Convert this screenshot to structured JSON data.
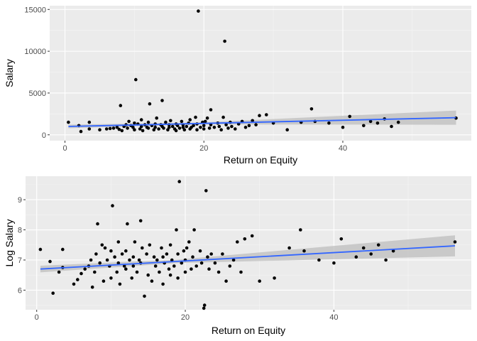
{
  "colors": {
    "panel_bg": "#ebebeb",
    "grid_major": "#ffffff",
    "grid_minor": "#f5f5f5",
    "point": "#000000",
    "smooth_line": "#3366ff",
    "ribbon": "#bdbdbd",
    "tick_text": "#4d4d4d"
  },
  "chart_data": [
    {
      "type": "scatter",
      "title": "",
      "xlabel": "Return on Equity",
      "ylabel": "Salary",
      "xlim": [
        -2.2,
        58.5
      ],
      "ylim": [
        -700,
        15450
      ],
      "x_ticks": [
        0,
        20,
        40
      ],
      "y_ticks": [
        0,
        5000,
        10000,
        15000
      ],
      "grid": true,
      "smooth": {
        "method": "lm",
        "se": true,
        "x": [
          0.5,
          56.3
        ],
        "y": [
          1000,
          2050
        ],
        "ci_halfwidth": [
          210,
          850
        ]
      },
      "points": [
        [
          0.5,
          1500
        ],
        [
          2,
          1100
        ],
        [
          2.3,
          400
        ],
        [
          3.5,
          700
        ],
        [
          3.5,
          1500
        ],
        [
          5,
          600
        ],
        [
          6,
          700
        ],
        [
          6.5,
          750
        ],
        [
          7,
          800
        ],
        [
          7.5,
          900
        ],
        [
          7.8,
          650
        ],
        [
          8,
          3500
        ],
        [
          8.2,
          500
        ],
        [
          8.5,
          1000
        ],
        [
          8.8,
          1200
        ],
        [
          9,
          800
        ],
        [
          9.2,
          1600
        ],
        [
          9.5,
          1100
        ],
        [
          9.8,
          900
        ],
        [
          10,
          1400
        ],
        [
          10,
          600
        ],
        [
          10.2,
          6600
        ],
        [
          10.5,
          1300
        ],
        [
          10.8,
          700
        ],
        [
          11,
          1000
        ],
        [
          11,
          1800
        ],
        [
          11.2,
          500
        ],
        [
          11.5,
          1200
        ],
        [
          11.8,
          900
        ],
        [
          12,
          1500
        ],
        [
          12,
          800
        ],
        [
          12.2,
          3700
        ],
        [
          12.5,
          1100
        ],
        [
          12.8,
          600
        ],
        [
          13,
          1300
        ],
        [
          13,
          900
        ],
        [
          13.2,
          2000
        ],
        [
          13.5,
          700
        ],
        [
          13.8,
          1200
        ],
        [
          14,
          4100
        ],
        [
          14,
          1000
        ],
        [
          14.2,
          800
        ],
        [
          14.5,
          1500
        ],
        [
          14.8,
          600
        ],
        [
          15,
          1200
        ],
        [
          15,
          900
        ],
        [
          15.2,
          1700
        ],
        [
          15.5,
          1000
        ],
        [
          15.8,
          700
        ],
        [
          16,
          1300
        ],
        [
          16,
          500
        ],
        [
          16.2,
          1100
        ],
        [
          16.5,
          800
        ],
        [
          16.8,
          1600
        ],
        [
          17,
          900
        ],
        [
          17,
          1200
        ],
        [
          17.2,
          600
        ],
        [
          17.5,
          1000
        ],
        [
          17.8,
          1400
        ],
        [
          18,
          700
        ],
        [
          18,
          1800
        ],
        [
          18.2,
          900
        ],
        [
          18.5,
          1100
        ],
        [
          18.8,
          2100
        ],
        [
          19,
          1300
        ],
        [
          19,
          600
        ],
        [
          19.2,
          14800
        ],
        [
          19.5,
          900
        ],
        [
          19.8,
          1500
        ],
        [
          20,
          1100
        ],
        [
          20,
          700
        ],
        [
          20.2,
          1600
        ],
        [
          20.5,
          2000
        ],
        [
          20.8,
          800
        ],
        [
          21,
          1200
        ],
        [
          21,
          3000
        ],
        [
          21.5,
          900
        ],
        [
          22,
          1400
        ],
        [
          22.2,
          1000
        ],
        [
          22.5,
          600
        ],
        [
          22.8,
          2100
        ],
        [
          23,
          11200
        ],
        [
          23.2,
          1200
        ],
        [
          23.5,
          800
        ],
        [
          23.8,
          1500
        ],
        [
          24,
          1000
        ],
        [
          24.5,
          700
        ],
        [
          25,
          1300
        ],
        [
          25.5,
          1600
        ],
        [
          26,
          900
        ],
        [
          26.5,
          1100
        ],
        [
          27,
          1700
        ],
        [
          27.5,
          1200
        ],
        [
          28,
          2300
        ],
        [
          29,
          2400
        ],
        [
          30,
          1400
        ],
        [
          32,
          600
        ],
        [
          34,
          1500
        ],
        [
          35.5,
          3100
        ],
        [
          36,
          1600
        ],
        [
          38,
          1400
        ],
        [
          40,
          900
        ],
        [
          41,
          2200
        ],
        [
          43,
          1100
        ],
        [
          44,
          1600
        ],
        [
          45,
          1400
        ],
        [
          46,
          1900
        ],
        [
          47,
          1000
        ],
        [
          48,
          1500
        ],
        [
          56.3,
          2000
        ]
      ]
    },
    {
      "type": "scatter",
      "title": "",
      "xlabel": "Return on Equity",
      "ylabel": "Log Salary",
      "xlim": [
        -1.5,
        58.5
      ],
      "ylim": [
        5.35,
        9.78
      ],
      "x_ticks": [
        0,
        20,
        40
      ],
      "y_ticks": [
        6,
        7,
        8,
        9
      ],
      "grid": true,
      "smooth": {
        "method": "lm",
        "se": true,
        "x": [
          0.5,
          56.3
        ],
        "y": [
          6.7,
          7.47
        ],
        "ci_halfwidth": [
          0.11,
          0.35
        ]
      },
      "points": [
        [
          0.5,
          7.35
        ],
        [
          1.8,
          6.95
        ],
        [
          2.2,
          5.9
        ],
        [
          3,
          6.6
        ],
        [
          3.5,
          6.75
        ],
        [
          3.5,
          7.35
        ],
        [
          5,
          6.2
        ],
        [
          5.5,
          6.35
        ],
        [
          6,
          6.55
        ],
        [
          6.5,
          6.7
        ],
        [
          7,
          6.8
        ],
        [
          7.3,
          7.0
        ],
        [
          7.5,
          6.1
        ],
        [
          7.8,
          6.6
        ],
        [
          8,
          7.2
        ],
        [
          8.2,
          8.2
        ],
        [
          8.5,
          6.9
        ],
        [
          8.8,
          7.5
        ],
        [
          9,
          6.3
        ],
        [
          9.2,
          7.4
        ],
        [
          9.5,
          7.0
        ],
        [
          9.8,
          6.8
        ],
        [
          10,
          7.3
        ],
        [
          10,
          6.4
        ],
        [
          10.2,
          8.8
        ],
        [
          10.5,
          7.1
        ],
        [
          10.8,
          6.6
        ],
        [
          11,
          7.6
        ],
        [
          11,
          6.9
        ],
        [
          11.2,
          6.2
        ],
        [
          11.5,
          7.2
        ],
        [
          11.8,
          6.8
        ],
        [
          12,
          7.3
        ],
        [
          12,
          6.7
        ],
        [
          12.2,
          8.2
        ],
        [
          12.5,
          7.0
        ],
        [
          12.8,
          6.4
        ],
        [
          13,
          7.1
        ],
        [
          13,
          6.8
        ],
        [
          13.2,
          7.6
        ],
        [
          13.5,
          6.6
        ],
        [
          13.8,
          7.0
        ],
        [
          14,
          8.3
        ],
        [
          14,
          6.9
        ],
        [
          14.2,
          7.4
        ],
        [
          14.5,
          5.8
        ],
        [
          14.8,
          7.2
        ],
        [
          15,
          6.5
        ],
        [
          15.2,
          7.5
        ],
        [
          15.5,
          6.3
        ],
        [
          15.8,
          7.1
        ],
        [
          16,
          6.8
        ],
        [
          16.2,
          7.0
        ],
        [
          16.5,
          6.6
        ],
        [
          16.8,
          7.4
        ],
        [
          17,
          6.2
        ],
        [
          17,
          7.1
        ],
        [
          17.2,
          6.9
        ],
        [
          17.5,
          7.2
        ],
        [
          17.8,
          6.7
        ],
        [
          18,
          7.5
        ],
        [
          18,
          6.5
        ],
        [
          18.2,
          7.0
        ],
        [
          18.5,
          6.8
        ],
        [
          18.8,
          8.0
        ],
        [
          19,
          7.2
        ],
        [
          19,
          6.4
        ],
        [
          19.2,
          9.6
        ],
        [
          19.5,
          6.9
        ],
        [
          19.8,
          7.3
        ],
        [
          20,
          7.0
        ],
        [
          20,
          6.6
        ],
        [
          20.2,
          7.4
        ],
        [
          20.5,
          7.6
        ],
        [
          20.8,
          6.7
        ],
        [
          21,
          7.1
        ],
        [
          21.2,
          8.0
        ],
        [
          21.5,
          6.8
        ],
        [
          22,
          7.3
        ],
        [
          22.2,
          6.9
        ],
        [
          22.5,
          5.4
        ],
        [
          22.6,
          5.5
        ],
        [
          22.8,
          9.3
        ],
        [
          23,
          7.1
        ],
        [
          23.2,
          6.7
        ],
        [
          23.5,
          7.2
        ],
        [
          24,
          6.9
        ],
        [
          24.5,
          6.6
        ],
        [
          25,
          7.2
        ],
        [
          25.5,
          6.3
        ],
        [
          26,
          6.8
        ],
        [
          26.5,
          7.0
        ],
        [
          27,
          7.6
        ],
        [
          27.5,
          6.6
        ],
        [
          28,
          7.7
        ],
        [
          29,
          7.8
        ],
        [
          30,
          6.3
        ],
        [
          32,
          6.4
        ],
        [
          34,
          7.4
        ],
        [
          35.5,
          8.0
        ],
        [
          36,
          7.3
        ],
        [
          38,
          7.0
        ],
        [
          40,
          6.9
        ],
        [
          41,
          7.7
        ],
        [
          43,
          7.1
        ],
        [
          44,
          7.4
        ],
        [
          45,
          7.2
        ],
        [
          46,
          7.5
        ],
        [
          47,
          7.0
        ],
        [
          48,
          7.3
        ],
        [
          56.3,
          7.6
        ]
      ]
    }
  ]
}
